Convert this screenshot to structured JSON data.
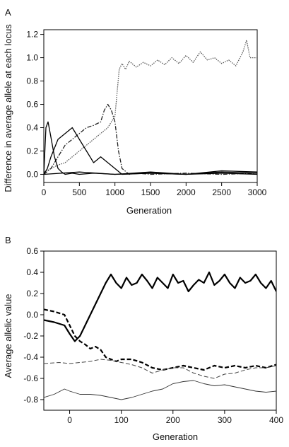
{
  "chart_data": [
    {
      "panel_label": "A",
      "type": "line",
      "xlabel": "Generation",
      "ylabel": "Difference in average allele at each locus",
      "xlim": [
        0,
        3000
      ],
      "ylim": [
        -0.07,
        1.24
      ],
      "xticks": [
        0,
        500,
        1000,
        1500,
        2000,
        2500,
        3000
      ],
      "yticks": [
        0.0,
        0.2,
        0.4,
        0.6,
        0.8,
        1.0,
        1.2
      ],
      "grid": false,
      "legend": "none",
      "series": [
        {
          "style": "dotted",
          "color": "#555555",
          "x": [
            0,
            100,
            200,
            300,
            400,
            500,
            600,
            700,
            800,
            900,
            950,
            1000,
            1030,
            1060,
            1100,
            1150,
            1200,
            1300,
            1400,
            1500,
            1600,
            1700,
            1800,
            1900,
            2000,
            2100,
            2200,
            2300,
            2400,
            2500,
            2600,
            2700,
            2800,
            2850,
            2900,
            3000
          ],
          "y": [
            0.02,
            0.05,
            0.08,
            0.1,
            0.15,
            0.2,
            0.25,
            0.3,
            0.35,
            0.4,
            0.45,
            0.5,
            0.7,
            0.9,
            0.95,
            0.9,
            0.97,
            0.92,
            0.96,
            0.93,
            0.98,
            0.94,
            1.0,
            0.95,
            1.02,
            0.96,
            1.05,
            0.98,
            1.0,
            0.95,
            0.98,
            0.93,
            1.05,
            1.15,
            1.0,
            1.0
          ]
        },
        {
          "style": "dashdot",
          "color": "#222222",
          "x": [
            0,
            100,
            200,
            300,
            400,
            500,
            600,
            700,
            800,
            850,
            900,
            950,
            1000,
            1050,
            1100,
            1200,
            1300,
            1500,
            2000,
            2500,
            3000
          ],
          "y": [
            0.0,
            0.05,
            0.15,
            0.25,
            0.3,
            0.35,
            0.4,
            0.42,
            0.45,
            0.55,
            0.6,
            0.55,
            0.45,
            0.2,
            0.05,
            0.0,
            0.01,
            0.0,
            0.01,
            0.0,
            0.01
          ]
        },
        {
          "style": "solid",
          "color": "#000000",
          "x": [
            0,
            30,
            60,
            90,
            120,
            150,
            200,
            250,
            300,
            400,
            500,
            700,
            1000,
            1500,
            2000,
            2500,
            3000
          ],
          "y": [
            0.0,
            0.4,
            0.45,
            0.35,
            0.25,
            0.15,
            0.05,
            0.02,
            0.0,
            0.01,
            0.0,
            0.01,
            0.0,
            0.01,
            0.0,
            0.02,
            0.01
          ]
        },
        {
          "style": "solid",
          "color": "#000000",
          "x": [
            0,
            50,
            100,
            200,
            300,
            400,
            500,
            600,
            700,
            800,
            900,
            1000,
            1100,
            1500,
            2000,
            2500,
            3000
          ],
          "y": [
            0.0,
            0.05,
            0.15,
            0.3,
            0.35,
            0.4,
            0.3,
            0.2,
            0.1,
            0.15,
            0.1,
            0.05,
            0.0,
            0.01,
            0.0,
            0.01,
            0.0
          ]
        },
        {
          "style": "solid",
          "color": "#000000",
          "x": [
            0,
            500,
            1000,
            1500,
            2000,
            2500,
            3000
          ],
          "y": [
            0.0,
            0.02,
            0.0,
            0.02,
            0.0,
            0.03,
            0.02
          ]
        }
      ]
    },
    {
      "panel_label": "B",
      "type": "line",
      "xlabel": "Generation",
      "ylabel": "Average allelic value",
      "xlim": [
        -50,
        400
      ],
      "ylim": [
        -0.9,
        0.6
      ],
      "xticks": [
        0,
        100,
        200,
        300,
        400
      ],
      "yticks": [
        -0.8,
        -0.6,
        -0.4,
        -0.2,
        0.0,
        0.2,
        0.4,
        0.6
      ],
      "grid": false,
      "legend": "none",
      "series": [
        {
          "style": "solid",
          "width": 2.2,
          "color": "#000000",
          "x": [
            -50,
            -30,
            -10,
            0,
            10,
            20,
            30,
            40,
            50,
            60,
            70,
            80,
            90,
            100,
            110,
            120,
            130,
            140,
            150,
            160,
            170,
            180,
            190,
            200,
            210,
            220,
            230,
            240,
            250,
            260,
            270,
            280,
            290,
            300,
            310,
            320,
            330,
            340,
            350,
            360,
            370,
            380,
            390,
            400
          ],
          "y": [
            -0.05,
            -0.07,
            -0.1,
            -0.18,
            -0.25,
            -0.2,
            -0.1,
            0.0,
            0.1,
            0.2,
            0.3,
            0.38,
            0.3,
            0.25,
            0.35,
            0.28,
            0.3,
            0.38,
            0.32,
            0.25,
            0.35,
            0.3,
            0.25,
            0.38,
            0.3,
            0.32,
            0.22,
            0.28,
            0.33,
            0.3,
            0.4,
            0.28,
            0.32,
            0.38,
            0.3,
            0.25,
            0.35,
            0.3,
            0.32,
            0.38,
            0.3,
            0.25,
            0.32,
            0.22
          ]
        },
        {
          "style": "dashed",
          "width": 2.2,
          "color": "#000000",
          "x": [
            -50,
            -30,
            -10,
            0,
            10,
            20,
            30,
            40,
            50,
            60,
            70,
            80,
            90,
            100,
            120,
            140,
            160,
            180,
            200,
            220,
            240,
            260,
            280,
            300,
            320,
            340,
            360,
            380,
            400
          ],
          "y": [
            0.05,
            0.03,
            0.0,
            -0.1,
            -0.2,
            -0.25,
            -0.28,
            -0.32,
            -0.3,
            -0.33,
            -0.4,
            -0.42,
            -0.44,
            -0.42,
            -0.42,
            -0.45,
            -0.5,
            -0.52,
            -0.5,
            -0.48,
            -0.5,
            -0.52,
            -0.48,
            -0.5,
            -0.48,
            -0.5,
            -0.48,
            -0.5,
            -0.47
          ]
        },
        {
          "style": "dashed",
          "width": 1.0,
          "color": "#444444",
          "x": [
            -50,
            -20,
            0,
            20,
            40,
            60,
            80,
            100,
            120,
            140,
            160,
            180,
            200,
            220,
            240,
            260,
            280,
            300,
            320,
            340,
            360,
            380,
            400
          ],
          "y": [
            -0.46,
            -0.45,
            -0.46,
            -0.45,
            -0.44,
            -0.42,
            -0.43,
            -0.45,
            -0.47,
            -0.5,
            -0.55,
            -0.52,
            -0.5,
            -0.5,
            -0.55,
            -0.58,
            -0.6,
            -0.56,
            -0.55,
            -0.52,
            -0.5,
            -0.5,
            -0.48
          ]
        },
        {
          "style": "solid",
          "width": 0.9,
          "color": "#333333",
          "x": [
            -50,
            -30,
            -10,
            0,
            20,
            40,
            60,
            80,
            100,
            120,
            140,
            160,
            180,
            200,
            220,
            240,
            260,
            280,
            300,
            320,
            340,
            360,
            380,
            400
          ],
          "y": [
            -0.78,
            -0.75,
            -0.7,
            -0.72,
            -0.75,
            -0.75,
            -0.76,
            -0.78,
            -0.8,
            -0.78,
            -0.75,
            -0.72,
            -0.7,
            -0.65,
            -0.63,
            -0.62,
            -0.65,
            -0.67,
            -0.66,
            -0.68,
            -0.7,
            -0.72,
            -0.73,
            -0.72
          ]
        }
      ]
    }
  ]
}
